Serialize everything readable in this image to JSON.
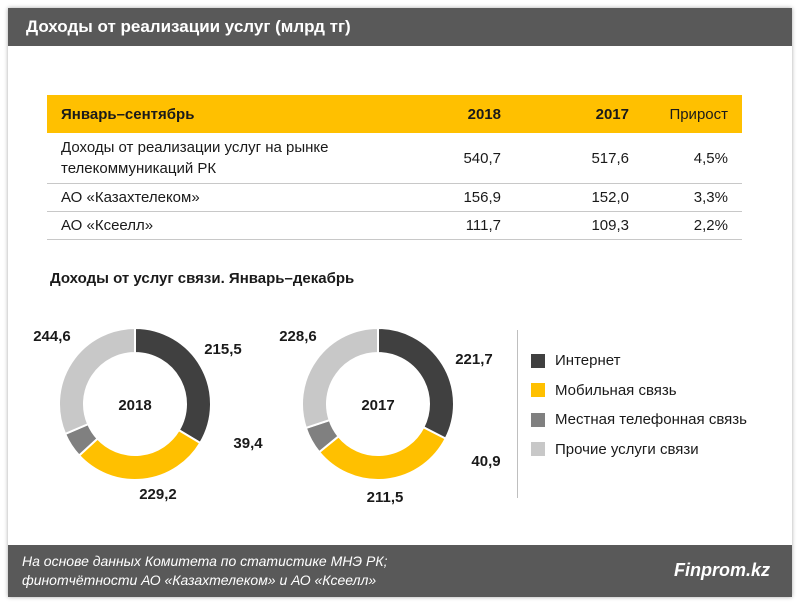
{
  "header": {
    "title": "Доходы от реализации  услуг (млрд тг)"
  },
  "table": {
    "columns": [
      "Январь–сентябрь",
      "2018",
      "2017",
      "Прирост"
    ],
    "rows": [
      {
        "label_line1": "Доходы от реализации услуг на рынке",
        "label_line2": "телекоммуникаций РК",
        "v2018": "540,7",
        "v2017": "517,6",
        "growth": "4,5%"
      },
      {
        "label": "АО «Казахтелеком»",
        "v2018": "156,9",
        "v2017": "152,0",
        "growth": "3,3%"
      },
      {
        "label": "АО «Ксеелл»",
        "v2018": "111,7",
        "v2017": "109,3",
        "growth": "2,2%"
      }
    ]
  },
  "chart_data": {
    "type": "donut",
    "title": "Доходы от услуг связи.  Январь–декабрь",
    "categories": [
      "Интернет",
      "Мобильная связь",
      "Местная телефонная связь",
      "Прочие услуги связи"
    ],
    "colors": [
      "#404040",
      "#ffc000",
      "#808080",
      "#c8c8c8"
    ],
    "charts": [
      {
        "name": "2018",
        "values": [
          244.6,
          215.5,
          39.4,
          229.2
        ],
        "labels": [
          "244,6",
          "215,5",
          "39,4",
          "229,2"
        ]
      },
      {
        "name": "2017",
        "values": [
          228.6,
          221.7,
          40.9,
          211.5
        ],
        "labels": [
          "228,6",
          "221,7",
          "40,9",
          "211,5"
        ]
      }
    ],
    "legend_position": "right"
  },
  "footer": {
    "note_line1": "На основе данных  Комитета по статистике МНЭ РК;",
    "note_line2": "финотчётности АО «Казахтелеком» и АО «Ксеелл»",
    "brand": "Finprom.kz"
  }
}
